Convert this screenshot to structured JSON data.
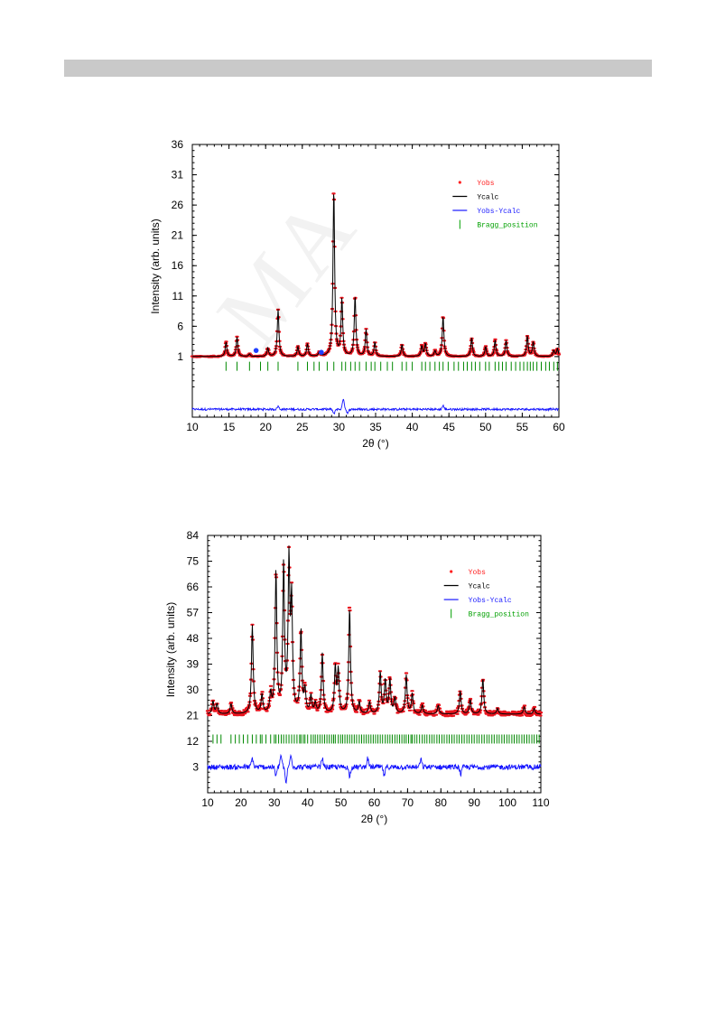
{
  "watermark_text": "ACCEPTED MANUSCRIPT",
  "chart_data": [
    {
      "type": "line",
      "xlabel": "2θ (°)",
      "ylabel": "Intensity  (arb. units)",
      "xlim": [
        10,
        60
      ],
      "ylim": [
        -9,
        36
      ],
      "xticks": [
        10,
        15,
        20,
        25,
        30,
        35,
        40,
        45,
        50,
        55,
        60
      ],
      "yticks": [
        1,
        6,
        11,
        16,
        21,
        26,
        31,
        36
      ],
      "baseline": 1,
      "diff_offset": -7.7,
      "bragg_y": -0.6,
      "peak_width": 0.13,
      "peaks": [
        [
          14.6,
          2.4
        ],
        [
          16.1,
          3.2
        ],
        [
          17.8,
          0.4
        ],
        [
          20.3,
          1.4
        ],
        [
          21.7,
          7.8
        ],
        [
          24.4,
          1.6
        ],
        [
          25.7,
          2.1
        ],
        [
          27.3,
          0.6
        ],
        [
          29.3,
          27.7
        ],
        [
          30.4,
          9.4
        ],
        [
          32.2,
          10.0
        ],
        [
          33.7,
          4.4
        ],
        [
          34.9,
          2.3
        ],
        [
          38.6,
          2.0
        ],
        [
          41.3,
          1.7
        ],
        [
          41.8,
          2.1
        ],
        [
          43.1,
          0.9
        ],
        [
          44.2,
          6.7
        ],
        [
          48.1,
          3.1
        ],
        [
          50.0,
          1.6
        ],
        [
          51.3,
          2.7
        ],
        [
          52.8,
          2.6
        ],
        [
          55.7,
          3.4
        ],
        [
          56.5,
          2.4
        ],
        [
          59.3,
          1.0
        ],
        [
          59.8,
          1.3
        ]
      ],
      "diff_features": [
        [
          21.7,
          0.5
        ],
        [
          29.3,
          -0.8
        ],
        [
          30.6,
          1.8
        ],
        [
          31.2,
          -0.7
        ],
        [
          44.2,
          0.6
        ]
      ],
      "bragg_positions": [
        14.6,
        16.1,
        17.8,
        19.3,
        20.3,
        21.7,
        24.4,
        25.7,
        26.6,
        27.3,
        28.4,
        29.3,
        30.4,
        30.9,
        31.6,
        32.2,
        32.8,
        33.7,
        34.4,
        34.9,
        35.7,
        36.6,
        37.3,
        38.6,
        39.2,
        40.0,
        41.3,
        41.8,
        42.4,
        43.1,
        43.7,
        44.2,
        44.9,
        45.7,
        46.3,
        47.0,
        47.5,
        48.1,
        48.6,
        49.2,
        50.0,
        50.5,
        51.3,
        51.8,
        52.3,
        52.8,
        53.5,
        54.1,
        54.7,
        55.2,
        55.7,
        56.1,
        56.5,
        57.0,
        57.6,
        58.2,
        58.7,
        59.3,
        59.8
      ],
      "markers": [
        {
          "x": 18.7,
          "y": 2.0,
          "color": "#1f3fff"
        },
        {
          "x": 27.6,
          "y": 1.7,
          "color": "#1f3fff"
        }
      ],
      "legend": [
        {
          "label": "Yobs",
          "color": "#ff2020",
          "symbol": "dot"
        },
        {
          "label": "Ycalc",
          "color": "#000000",
          "symbol": "line"
        },
        {
          "label": "Yobs-Ycalc",
          "color": "#2020ff",
          "symbol": "line"
        },
        {
          "label": "Bragg_position",
          "color": "#00a000",
          "symbol": "tick"
        }
      ],
      "legend_placement": "top-right",
      "grid": false,
      "colors": {
        "obs": "#e8141e",
        "calc": "#000000",
        "diff": "#1414ff",
        "bragg": "#008800"
      }
    },
    {
      "type": "line",
      "xlabel": "2θ (°)",
      "ylabel": "Intensity  (arb. units)",
      "xlim": [
        10,
        110
      ],
      "ylim": [
        -6,
        84
      ],
      "xticks": [
        10,
        20,
        30,
        40,
        50,
        60,
        70,
        80,
        90,
        100,
        110
      ],
      "yticks": [
        3,
        12,
        21,
        30,
        39,
        48,
        57,
        66,
        75,
        84
      ],
      "baseline": 21.5,
      "diff_offset": 3,
      "bragg_y": 12.8,
      "peak_width": 0.3,
      "peaks": [
        [
          11.6,
          4.5
        ],
        [
          12.8,
          3.5
        ],
        [
          17.0,
          3.5
        ],
        [
          23.4,
          31.0
        ],
        [
          26.3,
          6.5
        ],
        [
          28.9,
          6.5
        ],
        [
          30.5,
          49.5
        ],
        [
          32.8,
          51.5
        ],
        [
          34.4,
          52.0
        ],
        [
          35.2,
          38.0
        ],
        [
          38.0,
          29.0
        ],
        [
          39.2,
          8.0
        ],
        [
          41.0,
          6.0
        ],
        [
          42.3,
          3.5
        ],
        [
          44.4,
          21.0
        ],
        [
          48.3,
          16.0
        ],
        [
          49.2,
          15.0
        ],
        [
          52.6,
          37.0
        ],
        [
          55.5,
          4.0
        ],
        [
          58.6,
          4.0
        ],
        [
          61.8,
          14.5
        ],
        [
          63.3,
          11.5
        ],
        [
          64.7,
          12.0
        ],
        [
          66.2,
          5.5
        ],
        [
          69.6,
          13.5
        ],
        [
          71.4,
          7.0
        ],
        [
          74.4,
          3.0
        ],
        [
          79.2,
          3.0
        ],
        [
          85.8,
          8.0
        ],
        [
          88.8,
          5.0
        ],
        [
          92.6,
          12.5
        ],
        [
          97.0,
          2.0
        ],
        [
          105.0,
          2.5
        ],
        [
          108.0,
          2.0
        ]
      ],
      "diff_features": [
        [
          23.4,
          3.0
        ],
        [
          30.5,
          -3.0
        ],
        [
          32.0,
          4.0
        ],
        [
          33.5,
          -5.5
        ],
        [
          35.0,
          4.5
        ],
        [
          44.4,
          3.0
        ],
        [
          52.6,
          -3.0
        ],
        [
          58.0,
          3.0
        ],
        [
          63.0,
          -3.0
        ],
        [
          74.0,
          2.5
        ],
        [
          86.0,
          -2.5
        ]
      ],
      "bragg_positions": [
        11.6,
        12.8,
        14.0,
        17.0,
        18.3,
        19.5,
        20.7,
        22.0,
        23.4,
        24.6,
        25.8,
        26.3,
        27.5,
        28.9,
        30.0,
        30.5,
        31.3,
        32.1,
        32.8,
        33.6,
        34.4,
        35.2,
        36.0,
        36.8,
        37.6,
        38.0,
        38.7,
        39.2,
        40.0,
        41.0,
        41.7,
        42.3,
        43.0,
        43.7,
        44.4,
        45.1,
        45.8,
        46.5,
        47.2,
        47.8,
        48.3,
        49.2,
        49.9,
        50.5,
        51.2,
        51.9,
        52.6,
        53.3,
        54.0,
        54.7,
        55.5,
        56.2,
        56.9,
        57.6,
        58.3,
        59.0,
        59.7,
        60.4,
        61.1,
        61.8,
        62.5,
        63.3,
        64.0,
        64.7,
        65.4,
        66.2,
        66.9,
        67.6,
        68.3,
        69.0,
        69.6,
        70.3,
        71.0,
        71.4,
        72.1,
        72.8,
        73.6,
        74.4,
        75.1,
        75.8,
        76.6,
        77.3,
        78.0,
        78.8,
        79.5,
        80.3,
        81.0,
        81.8,
        82.5,
        83.3,
        84.0,
        84.8,
        85.5,
        86.3,
        87.0,
        87.8,
        88.5,
        89.3,
        90.0,
        90.8,
        91.5,
        92.3,
        93.0,
        93.8,
        94.5,
        95.3,
        96.0,
        96.8,
        97.5,
        98.3,
        99.0,
        99.8,
        100.5,
        101.3,
        102.0,
        102.8,
        103.5,
        104.3,
        105.0,
        105.8,
        106.5,
        107.3,
        108.0,
        108.8,
        109.5
      ],
      "markers": [],
      "legend": [
        {
          "label": "Yobs",
          "color": "#ff2020",
          "symbol": "dot"
        },
        {
          "label": "Ycalc",
          "color": "#000000",
          "symbol": "line"
        },
        {
          "label": "Yobs-Ycalc",
          "color": "#2020ff",
          "symbol": "line"
        },
        {
          "label": "Bragg_position",
          "color": "#00a000",
          "symbol": "tick"
        }
      ],
      "legend_placement": "top-right",
      "grid": false,
      "colors": {
        "obs": "#e8141e",
        "calc": "#000000",
        "diff": "#1414ff",
        "bragg": "#008800"
      }
    }
  ]
}
